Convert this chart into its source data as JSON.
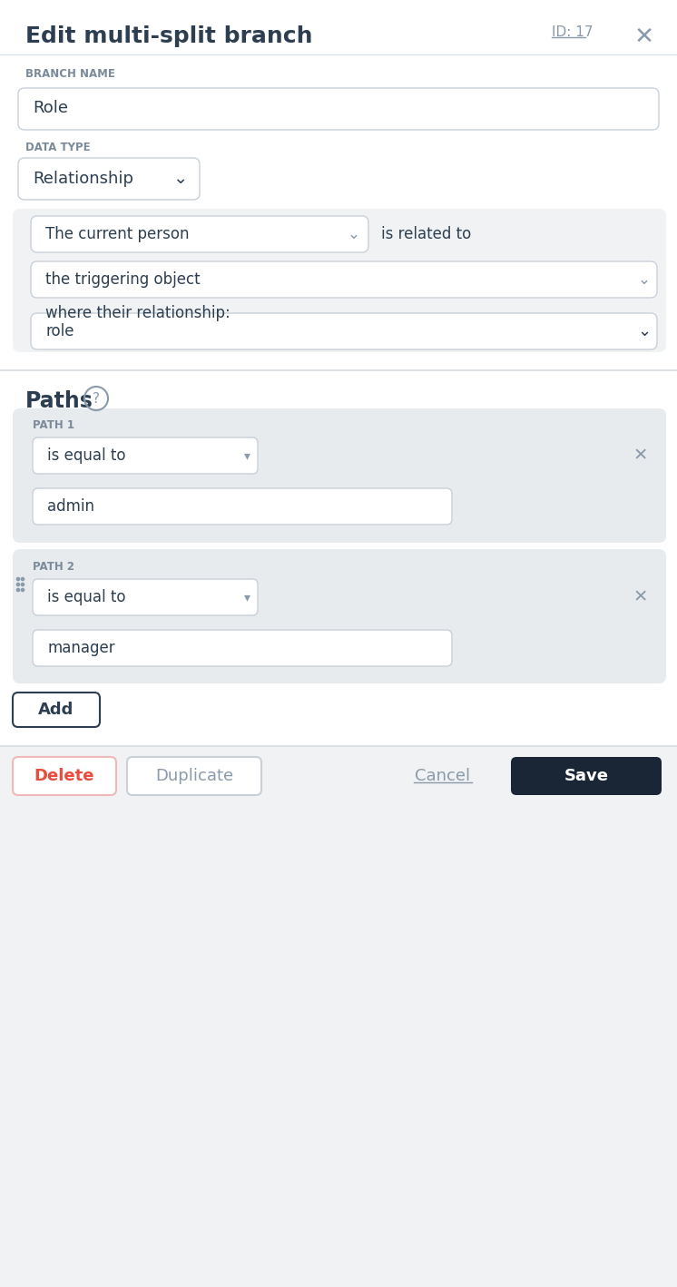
{
  "title": "Edit multi-split branch",
  "id_text": "ID: 17",
  "bg_color": "#ffffff",
  "section_bg": "#f0f2f4",
  "panel_bg": "#e8ebee",
  "border_color": "#c8d0d8",
  "input_bg": "#ffffff",
  "label_color": "#7a8a9a",
  "text_color": "#2c3e50",
  "muted_color": "#8a9aaa",
  "branch_name_label": "BRANCH NAME",
  "branch_name_value": "Role",
  "data_type_label": "DATA TYPE",
  "data_type_value": "Relationship",
  "person_dropdown": "The current person",
  "related_text": "is related to",
  "object_dropdown": "the triggering object",
  "where_text": "where their relationship:",
  "role_dropdown": "role",
  "paths_title": "Paths",
  "path1_label": "PATH 1",
  "path1_operator": "is equal to",
  "path1_value": "admin",
  "path2_label": "PATH 2",
  "path2_operator": "is equal to",
  "path2_value": "manager",
  "add_btn": "Add",
  "delete_btn": "Delete",
  "duplicate_btn": "Duplicate",
  "cancel_btn": "Cancel",
  "save_btn": "Save",
  "delete_color": "#e74c3c",
  "delete_border": "#f0b8b8",
  "save_bg": "#1a2535",
  "save_color": "#ffffff",
  "divider_color": "#dde2e7",
  "footer_bg": "#f0f2f4"
}
